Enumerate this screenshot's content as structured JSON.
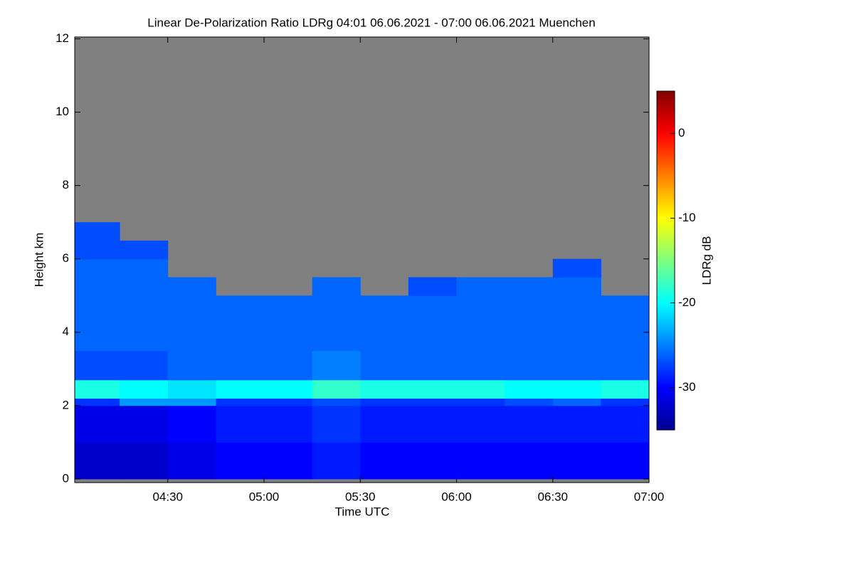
{
  "chart_data": {
    "type": "heatmap",
    "title": "Linear De-Polarization Ratio LDRg   04:01 06.06.2021 - 07:00 06.06.2021 Muenchen",
    "xlabel": "Time UTC",
    "ylabel": "Height km",
    "colorbar_label": "LDRg dB",
    "colormap": "jet",
    "background": "#808080",
    "x": [
      4.0167,
      4.25,
      4.5,
      4.75,
      5.0,
      5.25,
      5.5,
      5.75,
      6.0,
      6.25,
      6.5,
      6.75,
      7.0
    ],
    "y": [
      0,
      1,
      2,
      2.2,
      2.7,
      3.5,
      4.5,
      5,
      5.5,
      6,
      6.5,
      7,
      12
    ],
    "z": [
      [
        -32,
        -32,
        -31,
        -30,
        -30,
        -29,
        -30,
        -30,
        -30,
        -30,
        -30,
        -30
      ],
      [
        -31,
        -31,
        -30,
        -29,
        -29,
        -28,
        -29,
        -29,
        -29,
        -29,
        -29,
        -29
      ],
      [
        -28,
        -24,
        -24,
        -28,
        -28,
        -27,
        -28,
        -28,
        -28,
        -27,
        -26,
        -28
      ],
      [
        -19,
        -20,
        -21,
        -20,
        -20,
        -18,
        -19,
        -19,
        -19,
        -20,
        -20,
        -19
      ],
      [
        -27,
        -27,
        -26,
        -26,
        -26,
        -25,
        -26,
        -26,
        -26,
        -26,
        -26,
        -26
      ],
      [
        -26,
        -26,
        -26,
        -26,
        -26,
        -26,
        -26,
        -26,
        -26,
        -26,
        -26,
        -26
      ],
      [
        -26,
        -26,
        -26,
        -26,
        -26,
        -26,
        -26,
        -26,
        -26,
        -26,
        -26,
        -26
      ],
      [
        -26,
        -26,
        -26,
        null,
        null,
        -26,
        null,
        -27,
        -26,
        -26,
        -26,
        null
      ],
      [
        -26,
        -26,
        null,
        null,
        null,
        null,
        null,
        null,
        null,
        null,
        -27,
        null
      ],
      [
        -27,
        -27,
        null,
        null,
        null,
        null,
        null,
        null,
        null,
        null,
        null,
        null
      ],
      [
        -27,
        null,
        null,
        null,
        null,
        null,
        null,
        null,
        null,
        null,
        null,
        null
      ],
      [
        null,
        null,
        null,
        null,
        null,
        null,
        null,
        null,
        null,
        null,
        null,
        null
      ]
    ],
    "xlim": [
      4.0167,
      7.0
    ],
    "xticks": [
      {
        "value": 4.5,
        "label": "04:30"
      },
      {
        "value": 5.0,
        "label": "05:00"
      },
      {
        "value": 5.5,
        "label": "05:30"
      },
      {
        "value": 6.0,
        "label": "06:00"
      },
      {
        "value": 6.5,
        "label": "06:30"
      },
      {
        "value": 7.0,
        "label": "07:00"
      }
    ],
    "ylim": [
      -0.1,
      12.05
    ],
    "yticks": [
      0,
      2,
      4,
      6,
      8,
      10,
      12
    ],
    "clim": [
      -35,
      5
    ],
    "cticks": [
      0,
      -10,
      -20,
      -30
    ]
  }
}
